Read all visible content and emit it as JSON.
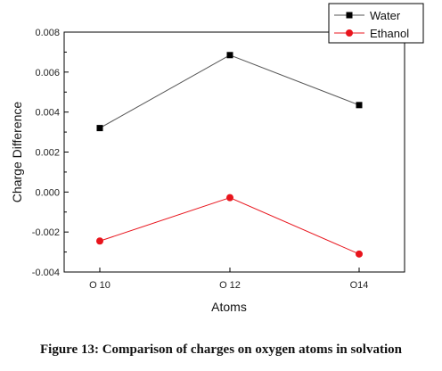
{
  "caption": "Figure 13: Comparison of charges on oxygen atoms in solvation",
  "chart_data": {
    "type": "line",
    "title": "",
    "xlabel": "Atoms",
    "ylabel": "Charge Difference",
    "categories": [
      "O 10",
      "O 12",
      "O14"
    ],
    "ylim": [
      -0.004,
      0.008
    ],
    "yticks": [
      "0.008",
      "0.006",
      "0.004",
      "0.002",
      "0.000",
      "-0.002",
      "-0.004"
    ],
    "ytick_values": [
      0.008,
      0.006,
      0.004,
      0.002,
      0.0,
      -0.002,
      -0.004
    ],
    "grid": false,
    "legend_position": "top-right",
    "series": [
      {
        "name": "Water",
        "values": [
          0.0032,
          0.00685,
          0.00435
        ],
        "color": "#000000",
        "line_color": "#555555",
        "marker": "square"
      },
      {
        "name": "Ethanol",
        "values": [
          -0.00245,
          -0.00028,
          -0.0031
        ],
        "color": "#e8141c",
        "line_color": "#e8141c",
        "marker": "circle"
      }
    ]
  }
}
